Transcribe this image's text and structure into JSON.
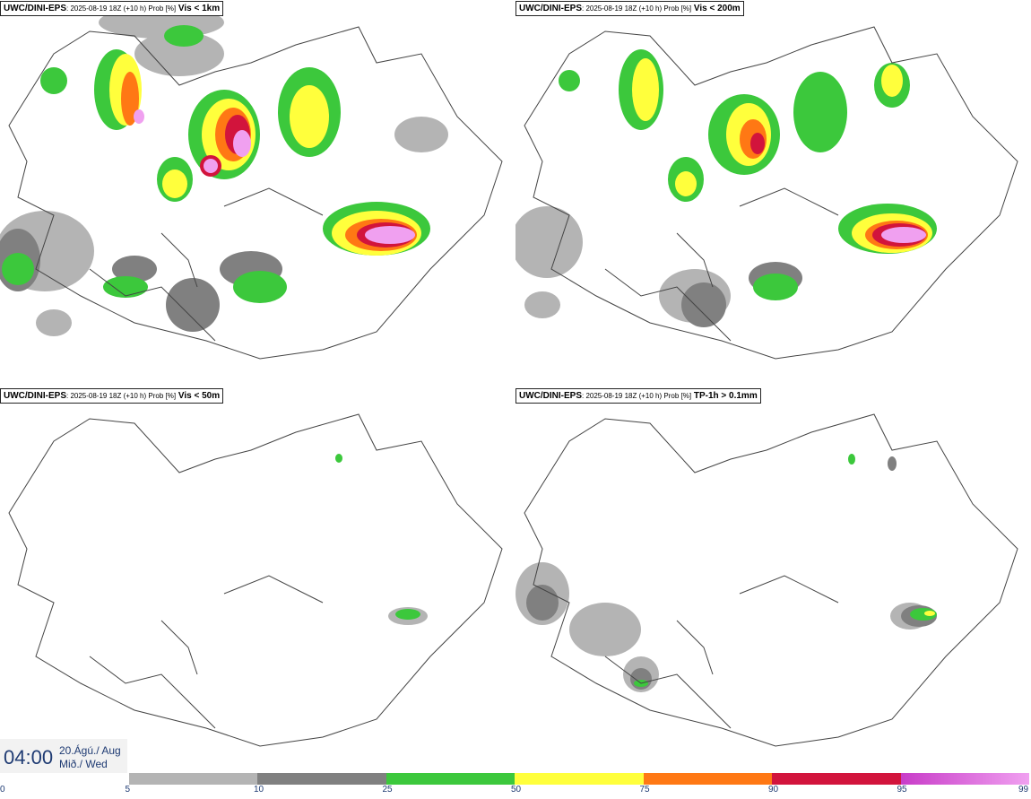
{
  "panels": [
    {
      "model": "UWC/DINI-EPS",
      "meta": ": 2025-08-19 18Z (+10 h) Prob [%]",
      "threshold": "Vis < 1km"
    },
    {
      "model": "UWC/DINI-EPS",
      "meta": ": 2025-08-19 18Z (+10 h) Prob [%]",
      "threshold": "Vis < 200m"
    },
    {
      "model": "UWC/DINI-EPS",
      "meta": ": 2025-08-19 18Z (+10 h) Prob [%]",
      "threshold": "Vis < 50m"
    },
    {
      "model": "UWC/DINI-EPS",
      "meta": ": 2025-08-19 18Z (+10 h) Prob [%]",
      "threshold": "TP-1h > 0.1mm"
    }
  ],
  "valid_time": {
    "time": "04:00",
    "date_line1": "20.Ágú./ Aug",
    "date_line2": "Mið./ Wed"
  },
  "colorbar": {
    "ticks": [
      "0",
      "5",
      "10",
      "25",
      "50",
      "75",
      "90",
      "95",
      "99"
    ],
    "colors": [
      "#ffffff",
      "#b4b4b4",
      "#808080",
      "#3cc83c",
      "#ffff3c",
      "#ff7814",
      "#d2143c",
      "#c83cc8"
    ],
    "last_color": "#f0a0f0"
  },
  "colors": {
    "gray_light": "#b4b4b4",
    "gray_dark": "#808080",
    "green": "#3cc83c",
    "yellow": "#ffff3c",
    "orange": "#ff7814",
    "red": "#d2143c",
    "magenta": "#c83cc8",
    "pink": "#f0a0f0",
    "coast": "#444444"
  }
}
